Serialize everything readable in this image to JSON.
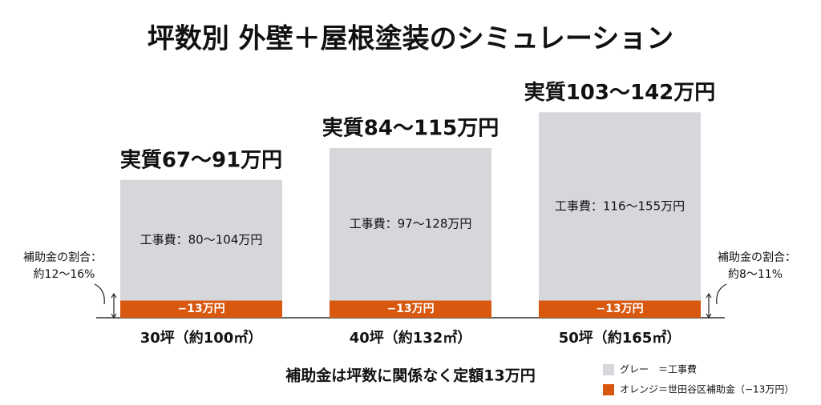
{
  "chart_data": {
    "type": "stacked_bar",
    "title": "坪数別 外壁＋屋根塗装のシミュレーション",
    "categories": [
      "30坪（約100㎡）",
      "40坪（約132㎡）",
      "50坪（約165㎡）"
    ],
    "series": [
      {
        "name": "オレンジ＝世田谷区補助金（−13万円）",
        "color": "#d9580f",
        "values": [
          13,
          13,
          13
        ],
        "value_labels": [
          "−13万円",
          "−13万円",
          "−13万円"
        ]
      },
      {
        "name": "グレー　＝工事費",
        "color": "#d5d7db",
        "values": [
          91,
          115,
          142
        ],
        "value_labels": [
          "実質67～91万円",
          "実質84～115万円",
          "実質103～142万円"
        ]
      }
    ],
    "cost_labels": [
      "工事費：80～104万円",
      "工事費：97～128万円",
      "工事費：116～155万円"
    ],
    "ylim": [
      0,
      160
    ],
    "annotations": {
      "left": [
        "補助金の割合：",
        "約12～16%"
      ],
      "right": [
        "補助金の割合：",
        "約8～11%"
      ]
    },
    "footer": "補助金は坪数に関係なく定額13万円"
  }
}
